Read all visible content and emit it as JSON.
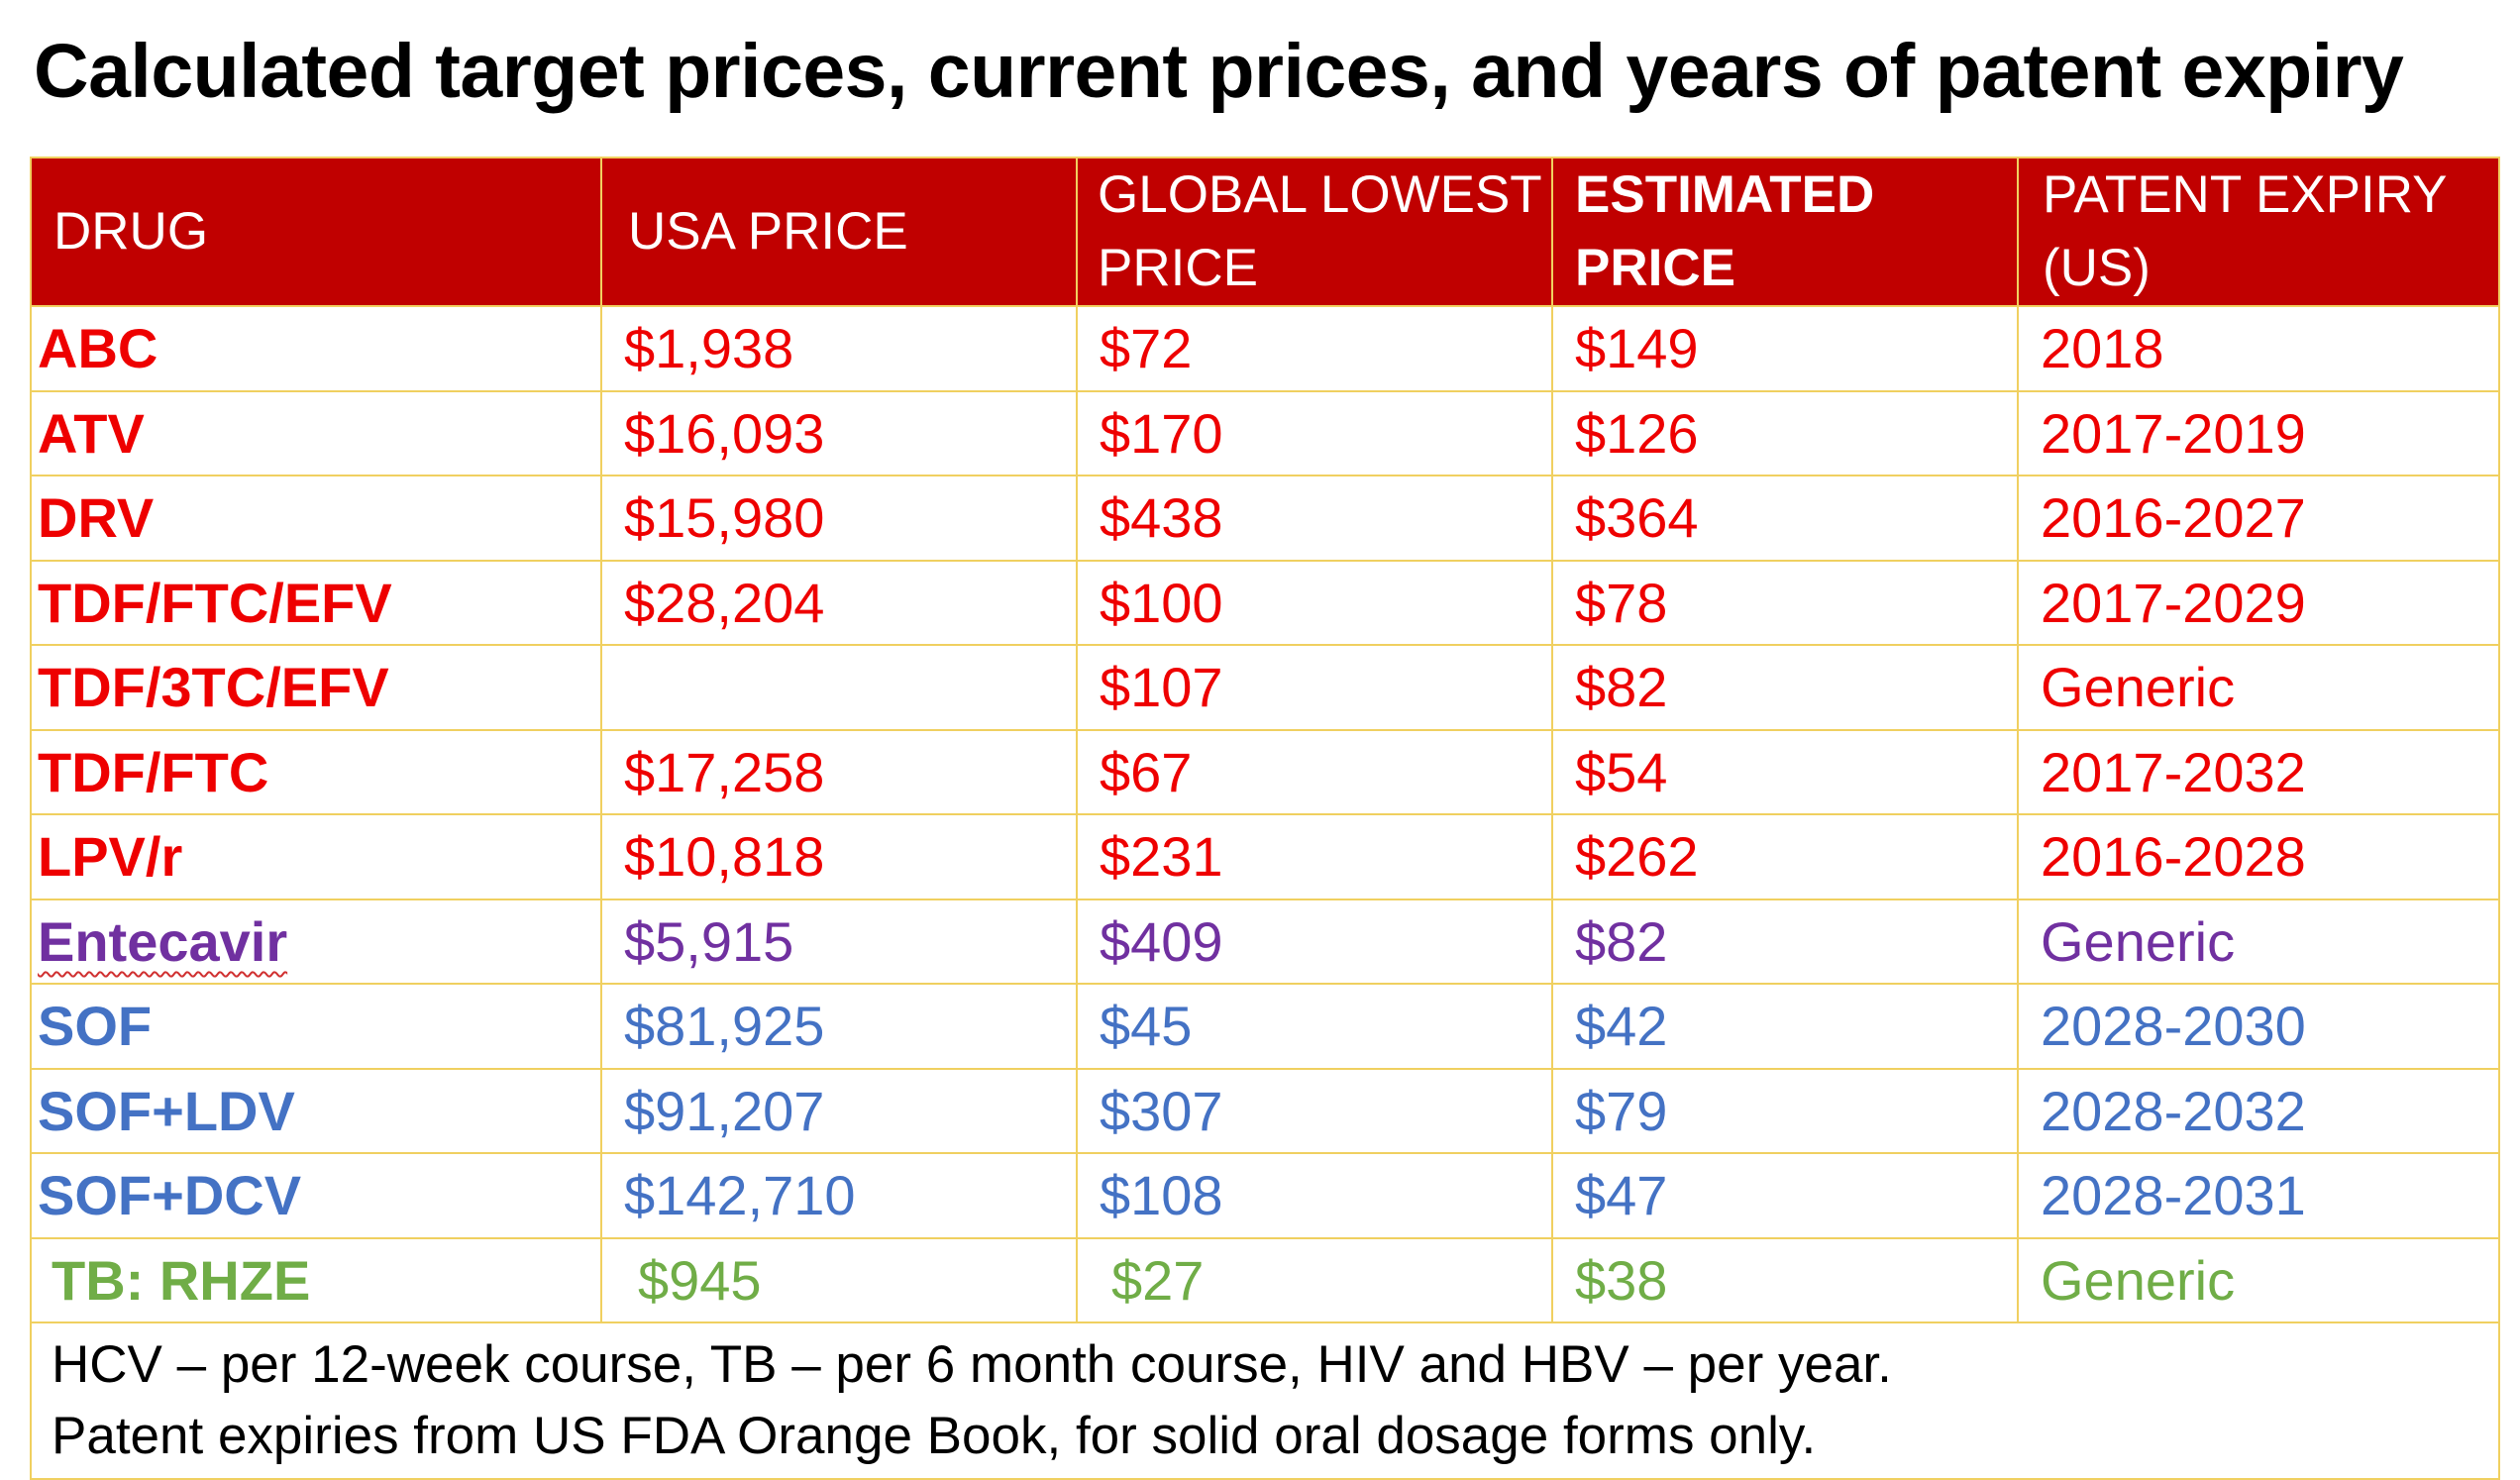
{
  "title": "Calculated target prices, current prices, and years of patent expiry",
  "colors": {
    "header_bg": "#c00000",
    "grid_line": "#f0d060",
    "hiv": "#ee0000",
    "hbv": "#7030a0",
    "hcv": "#4472c4",
    "tb": "#70ad47"
  },
  "table": {
    "headers": [
      {
        "line1": "DRUG",
        "line2": ""
      },
      {
        "line1": "USA PRICE",
        "line2": ""
      },
      {
        "line1": "GLOBAL LOWEST",
        "line2": "PRICE"
      },
      {
        "line1": "ESTIMATED",
        "line2": "PRICE"
      },
      {
        "line1": "PATENT EXPIRY",
        "line2": "(US)"
      }
    ],
    "rows": [
      {
        "drug": "ABC",
        "usa": "$1,938",
        "global": "$72",
        "estimated": "$149",
        "patent": "2018",
        "color": "red"
      },
      {
        "drug": "ATV",
        "usa": "$16,093",
        "global": "$170",
        "estimated": "$126",
        "patent": "2017-2019",
        "color": "red"
      },
      {
        "drug": "DRV",
        "usa": "$15,980",
        "global": "$438",
        "estimated": "$364",
        "patent": "2016-2027",
        "color": "red"
      },
      {
        "drug": "TDF/FTC/EFV",
        "usa": "$28,204",
        "global": "$100",
        "estimated": "$78",
        "patent": "2017-2029",
        "color": "red"
      },
      {
        "drug": "TDF/3TC/EFV",
        "usa": "",
        "global": "$107",
        "estimated": "$82",
        "patent": "Generic",
        "color": "red"
      },
      {
        "drug": "TDF/FTC",
        "usa": "$17,258",
        "global": "$67",
        "estimated": "$54",
        "patent": "2017-2032",
        "color": "red"
      },
      {
        "drug": "LPV/r",
        "usa": "$10,818",
        "global": "$231",
        "estimated": "$262",
        "patent": "2016-2028",
        "color": "red"
      },
      {
        "drug": "Entecavir",
        "usa": "$5,915",
        "global": "$409",
        "estimated": "$82",
        "patent": "Generic",
        "color": "purple"
      },
      {
        "drug": "SOF",
        "usa": "$81,925",
        "global": "$45",
        "estimated": "$42",
        "patent": "2028-2030",
        "color": "blue"
      },
      {
        "drug": "SOF+LDV",
        "usa": "$91,207",
        "global": "$307",
        "estimated": "$79",
        "patent": "2028-2032",
        "color": "blue"
      },
      {
        "drug": "SOF+DCV",
        "usa": "$142,710",
        "global": "$108",
        "estimated": "$47",
        "patent": "2028-2031",
        "color": "blue"
      },
      {
        "drug": "TB: RHZE",
        "usa": "$945",
        "global": "$27",
        "estimated": "$38",
        "patent": "Generic",
        "color": "green"
      }
    ],
    "notes": [
      "HCV – per 12-week course, TB – per 6 month course, HIV and HBV – per year.",
      "Patent expiries from US FDA Orange Book, for solid oral dosage forms only."
    ]
  }
}
